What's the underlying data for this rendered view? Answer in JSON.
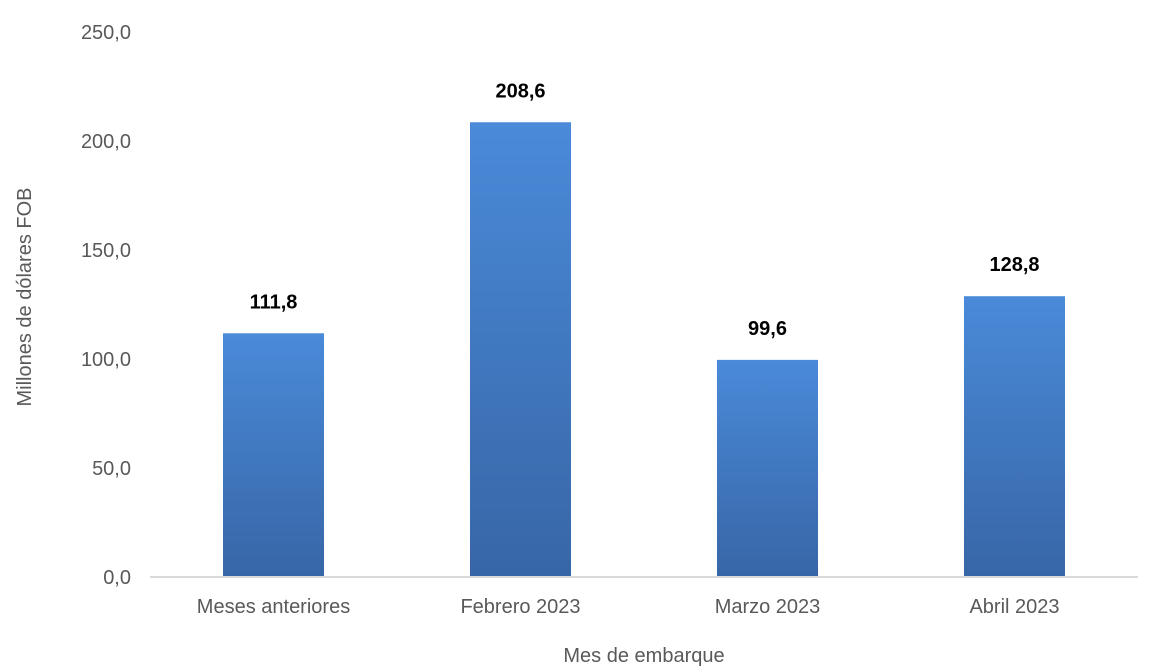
{
  "chart_data": {
    "type": "bar",
    "title": "",
    "xlabel": "Mes de embarque",
    "ylabel": "Millones de dólares FOB",
    "categories": [
      "Meses anteriores",
      "Febrero 2023",
      "Marzo 2023",
      "Abril 2023"
    ],
    "values": [
      111.8,
      208.6,
      99.6,
      128.8
    ],
    "value_labels": [
      "111,8",
      "208,6",
      "99,6",
      "128,8"
    ],
    "ylim": [
      0,
      250
    ],
    "yticks": [
      0,
      50,
      100,
      150,
      200,
      250
    ],
    "ytick_labels": [
      "0,0",
      "50,0",
      "100,0",
      "150,0",
      "200,0",
      "250,0"
    ],
    "grid": false,
    "legend": "none",
    "colors": {
      "bar_top": "#4A8AD9",
      "bar_bottom": "#3766A6",
      "axis": "#D9D9D9",
      "text": "#595959",
      "data_label": "#000000"
    }
  }
}
